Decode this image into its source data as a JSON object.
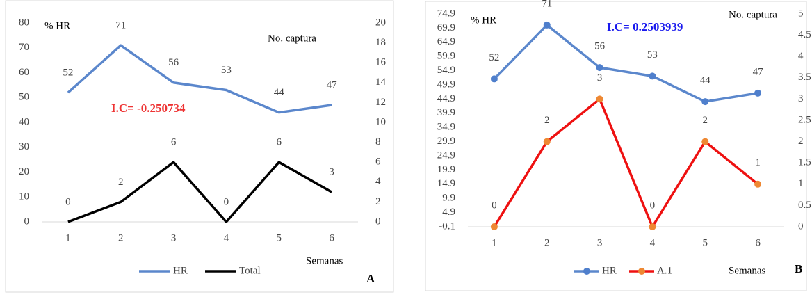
{
  "chart_data": [
    {
      "type": "line",
      "panel_label": "A",
      "left_axis_label": "% HR",
      "right_axis_label": "No. captura",
      "annotation": "I.C= -0.250734",
      "annotation_color": "#ee3333",
      "xlabel": "Semanas",
      "categories": [
        "1",
        "2",
        "3",
        "4",
        "5",
        "6"
      ],
      "series": [
        {
          "name": "HR",
          "color": "#5b87cc",
          "values": [
            52,
            71,
            56,
            53,
            44,
            47
          ]
        },
        {
          "name": "Total",
          "color": "#000000",
          "axis": "y2",
          "values": [
            0,
            2,
            6,
            0,
            6,
            3
          ]
        }
      ],
      "markers": false,
      "ylim": [
        0,
        80
      ],
      "yticks": [
        0,
        10,
        20,
        30,
        40,
        50,
        60,
        70,
        80
      ],
      "y2lim": [
        0,
        20
      ],
      "y2ticks": [
        0,
        2,
        4,
        6,
        8,
        10,
        12,
        14,
        16,
        18,
        20
      ],
      "legend": "bottom"
    },
    {
      "type": "line",
      "panel_label": "B",
      "left_axis_label": "% HR",
      "right_axis_label": "No. captura",
      "annotation": "I.C= 0.2503939",
      "annotation_color": "#1a1aee",
      "xlabel": "Semanas",
      "categories": [
        "1",
        "2",
        "3",
        "4",
        "5",
        "6"
      ],
      "series": [
        {
          "name": "HR",
          "color": "#5b87cc",
          "marker_color": "#4f7fcc",
          "values": [
            52,
            71,
            56,
            53,
            44,
            47
          ]
        },
        {
          "name": "A.1",
          "color": "#ee1111",
          "marker_color": "#ee8833",
          "axis": "y2",
          "values": [
            0,
            2,
            3,
            0,
            2,
            1
          ]
        }
      ],
      "markers": true,
      "ylim": [
        -0.1,
        74.9
      ],
      "yticks": [
        -0.1,
        4.9,
        9.9,
        14.9,
        19.9,
        24.9,
        29.9,
        34.9,
        39.9,
        44.9,
        49.9,
        54.9,
        59.9,
        64.9,
        69.9,
        74.9
      ],
      "y2lim": [
        0,
        5
      ],
      "y2ticks": [
        0,
        0.5,
        1,
        1.5,
        2,
        2.5,
        3,
        3.5,
        4,
        4.5,
        5
      ],
      "legend": "bottom"
    }
  ]
}
